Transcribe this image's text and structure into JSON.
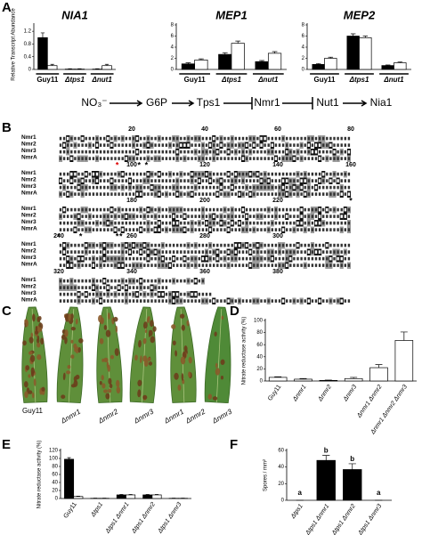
{
  "panel_a": {
    "label": "A",
    "y_axis_label": "Relative Transcript Abundance",
    "charts": [
      {
        "type": "bar",
        "title": "NIA1",
        "categories": [
          "Guy11",
          "Δtps1",
          "Δnut1"
        ],
        "ylim": [
          0,
          1.4
        ],
        "yticks": [
          0,
          0.4,
          0.8,
          1.2
        ],
        "series": [
          {
            "color": "#000000",
            "values": [
              1.0,
              0.01,
              0.01
            ],
            "errors": [
              0.15,
              0.01,
              0.01
            ]
          },
          {
            "color": "#ffffff",
            "values": [
              0.12,
              0.01,
              0.12
            ],
            "errors": [
              0.04,
              0.01,
              0.04
            ]
          }
        ]
      },
      {
        "type": "bar",
        "title": "MEP1",
        "categories": [
          "Guy11",
          "Δtps1",
          "Δnut1"
        ],
        "ylim": [
          0,
          8
        ],
        "yticks": [
          0,
          2,
          4,
          6,
          8
        ],
        "series": [
          {
            "color": "#000000",
            "values": [
              1.0,
              2.7,
              1.4
            ],
            "errors": [
              0.2,
              0.3,
              0.2
            ]
          },
          {
            "color": "#ffffff",
            "values": [
              1.7,
              4.7,
              2.9
            ],
            "errors": [
              0.2,
              0.4,
              0.3
            ]
          }
        ]
      },
      {
        "type": "bar",
        "title": "MEP2",
        "categories": [
          "Guy11",
          "Δtps1",
          "Δnut1"
        ],
        "ylim": [
          0,
          8
        ],
        "yticks": [
          0,
          2,
          4,
          6,
          8
        ],
        "series": [
          {
            "color": "#000000",
            "values": [
              0.9,
              6.0,
              0.7
            ],
            "errors": [
              0.15,
              0.4,
              0.1
            ]
          },
          {
            "color": "#ffffff",
            "values": [
              2.0,
              5.7,
              1.2
            ],
            "errors": [
              0.2,
              0.3,
              0.15
            ]
          }
        ]
      }
    ],
    "pathway": [
      "NO₃⁻",
      "G6P",
      "Tps1",
      "Nmr1",
      "Nut1",
      "Nia1"
    ]
  },
  "panel_b": {
    "label": "B",
    "rows": [
      "Nmr1",
      "Nmr2",
      "Nmr3",
      "NmrA"
    ],
    "blocks": [
      [
        20,
        40,
        60,
        80
      ],
      [
        100,
        120,
        140,
        160
      ],
      [
        180,
        200,
        220
      ],
      [
        240,
        260,
        280,
        300
      ],
      [
        320,
        340,
        360,
        380
      ]
    ],
    "marker": "*"
  },
  "panel_c": {
    "label": "C",
    "labels": [
      "Guy11",
      "Δnmr1",
      "Δnmr2",
      "Δnmr3",
      "Δnmr1",
      "Δnmr2",
      "Δnmr3"
    ]
  },
  "panel_d": {
    "label": "D",
    "chart": {
      "type": "bar",
      "y_axis_label": "Nitrate reductase activity (%)",
      "categories": [
        "Guy11",
        "Δnmr1",
        "Δnmr2",
        "Δnmr3",
        "Δnmr1 Δnmr2",
        "Δnmr1 Δnmr2 Δnmr3"
      ],
      "ylim": [
        0,
        100
      ],
      "yticks": [
        0,
        20,
        40,
        60,
        80,
        100
      ],
      "series": [
        {
          "color": "#ffffff",
          "values": [
            6,
            3,
            1,
            4,
            22,
            67
          ],
          "errors": [
            1,
            1,
            0.5,
            2,
            5,
            14
          ]
        }
      ]
    }
  },
  "panel_e": {
    "label": "E",
    "chart": {
      "type": "bar",
      "y_axis_label": "Nitrate reductase activity (%)",
      "categories": [
        "Guy11",
        "Δtps1",
        "Δtps1 Δnmr1",
        "Δtps1 Δnmr2",
        "Δtps1 Δnmr3"
      ],
      "ylim": [
        0,
        120
      ],
      "yticks": [
        0,
        20,
        40,
        60,
        80,
        100,
        120
      ],
      "series": [
        {
          "color": "#000000",
          "values": [
            98,
            0.5,
            9,
            9,
            0.5
          ],
          "errors": [
            4,
            0.3,
            1,
            1,
            0.3
          ]
        },
        {
          "color": "#ffffff",
          "values": [
            5,
            0.5,
            9,
            9,
            0.5
          ],
          "errors": [
            1,
            0.3,
            1,
            1,
            0.3
          ]
        }
      ]
    }
  },
  "panel_f": {
    "label": "F",
    "chart": {
      "type": "bar",
      "y_axis_label": "Spores / mm²",
      "categories": [
        "Δtps1",
        "Δtps1 Δnmr1",
        "Δtps1 Δnmr2",
        "Δtps1 Δnmr3"
      ],
      "ylim": [
        0,
        60
      ],
      "yticks": [
        0,
        20,
        40,
        60
      ],
      "series": [
        {
          "color": "#000000",
          "values": [
            0,
            48,
            37,
            0
          ],
          "errors": [
            0,
            6,
            7,
            0
          ]
        }
      ],
      "annotations": [
        "a",
        "b",
        "b",
        "a"
      ]
    }
  }
}
